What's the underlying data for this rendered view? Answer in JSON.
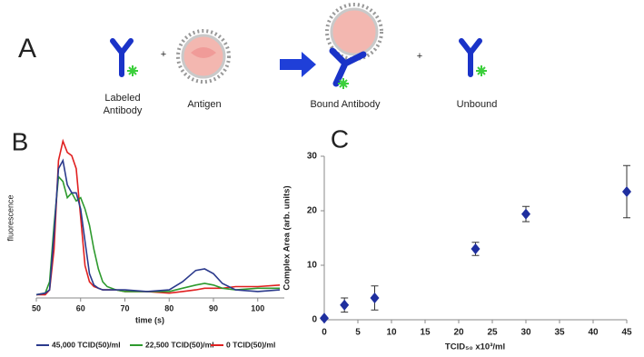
{
  "panel_a": {
    "letter": "A",
    "labels": [
      "Labeled Antibody",
      "Antigen",
      "Bound Antibody",
      "Unbound"
    ],
    "operators": [
      "+",
      "+"
    ]
  },
  "chart_data": [
    {
      "type": "line",
      "panel": "B",
      "ylabel": "fluorescence",
      "xlabel": "time (s)",
      "x": [
        50,
        52,
        53,
        54,
        55,
        56,
        57,
        58,
        59,
        60,
        61,
        62,
        63,
        64,
        65,
        66,
        68,
        70,
        75,
        80,
        83,
        86,
        88,
        90,
        92,
        95,
        100,
        105
      ],
      "series": [
        {
          "name": "45,000 TCID(50)/ml",
          "color": "#2b3a8c",
          "values": [
            0.02,
            0.03,
            0.05,
            0.4,
            0.8,
            0.85,
            0.7,
            0.65,
            0.65,
            0.55,
            0.35,
            0.15,
            0.08,
            0.06,
            0.05,
            0.05,
            0.05,
            0.05,
            0.04,
            0.05,
            0.1,
            0.17,
            0.18,
            0.15,
            0.09,
            0.05,
            0.04,
            0.05
          ]
        },
        {
          "name": "22,500 TCID(50)/ml",
          "color": "#2e9a2e",
          "values": [
            0.02,
            0.03,
            0.1,
            0.45,
            0.75,
            0.72,
            0.62,
            0.65,
            0.6,
            0.62,
            0.55,
            0.45,
            0.3,
            0.18,
            0.1,
            0.07,
            0.05,
            0.04,
            0.04,
            0.04,
            0.06,
            0.08,
            0.09,
            0.08,
            0.06,
            0.05,
            0.06,
            0.06
          ]
        },
        {
          "name": "0 TCID(50)/ml",
          "color": "#e02020",
          "values": [
            0.02,
            0.02,
            0.05,
            0.3,
            0.85,
            0.97,
            0.9,
            0.88,
            0.8,
            0.5,
            0.2,
            0.1,
            0.07,
            0.06,
            0.05,
            0.05,
            0.05,
            0.04,
            0.04,
            0.03,
            0.04,
            0.05,
            0.06,
            0.06,
            0.06,
            0.07,
            0.07,
            0.08
          ]
        }
      ],
      "xlim": [
        50,
        106
      ],
      "xticks": [
        50,
        60,
        70,
        80,
        90,
        100
      ],
      "ylim": [
        0,
        1
      ],
      "legend": "bottom"
    },
    {
      "type": "scatter",
      "panel": "C",
      "ylabel": "Complex Area (arb. units)",
      "xlabel": "TCID₅₀ x10³/ml",
      "x": [
        0,
        3,
        7.5,
        22.5,
        30,
        45
      ],
      "values": [
        0.3,
        2.7,
        4,
        13,
        19.4,
        23.5
      ],
      "errors": [
        0,
        1.3,
        2.2,
        1.2,
        1.4,
        4.8
      ],
      "color": "#1f2f9f",
      "xlim": [
        0,
        45
      ],
      "xticks": [
        0,
        5,
        10,
        15,
        20,
        25,
        30,
        35,
        40,
        45
      ],
      "ylim": [
        0,
        30
      ],
      "yticks": [
        0,
        10,
        20,
        30
      ]
    }
  ]
}
